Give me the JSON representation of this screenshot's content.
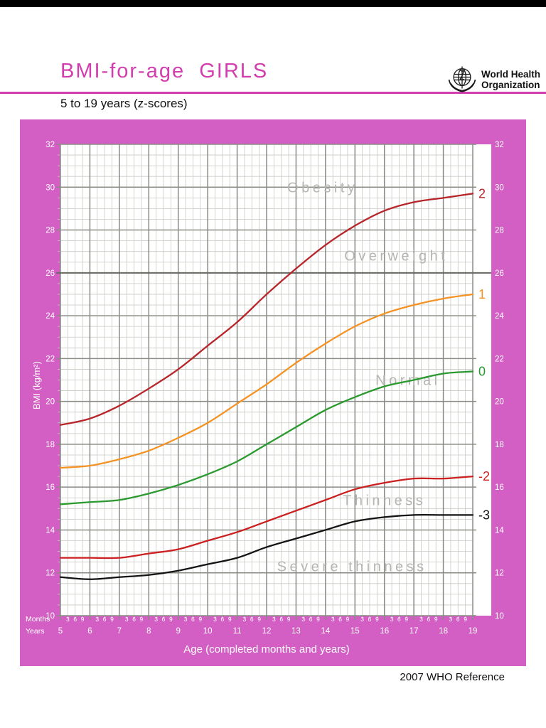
{
  "header": {
    "title": "BMI-for-age  GIRLS",
    "subtitle": "5 to 19 years (z-scores)",
    "logo_line1": "World Health",
    "logo_line2": "Organization"
  },
  "footer": {
    "reference": "2007 WHO Reference"
  },
  "colors": {
    "accent_magenta": "#d23eae",
    "frame_pink": "#d35ec4",
    "grid_minor": "#c9c9c3",
    "grid_major": "#8b8b85",
    "grid_emphasis": "#686862",
    "region_label_gray": "#b5b5b1",
    "axis_text_white": "#ffffff"
  },
  "chart_data": {
    "type": "line",
    "title": "BMI-for-age GIRLS, 5 to 19 years (z-scores)",
    "xlabel": "Age (completed months and years)",
    "ylabel": "BMI (kg/m²)",
    "xlim": [
      5,
      19
    ],
    "ylim": [
      10,
      32
    ],
    "grid": true,
    "legend_position": "right-of-curve-ends",
    "x_years": [
      5,
      6,
      7,
      8,
      9,
      10,
      11,
      12,
      13,
      14,
      15,
      16,
      17,
      18,
      19
    ],
    "y_major_ticks": [
      10,
      12,
      14,
      16,
      18,
      20,
      22,
      24,
      26,
      28,
      30,
      32
    ],
    "y_minor_step": 0.5,
    "x_minor_step_months": 3,
    "month_tick_labels": [
      "3",
      "6",
      "9"
    ],
    "axis_side_labels": {
      "months": "Months",
      "years": "Years"
    },
    "emphasis_gridline_bmi": 26,
    "series": [
      {
        "name": "z+2",
        "label": "2",
        "color": "#b8252a",
        "values": [
          18.9,
          19.2,
          19.8,
          20.6,
          21.5,
          22.6,
          23.7,
          25.0,
          26.2,
          27.3,
          28.2,
          28.9,
          29.3,
          29.5,
          29.7
        ]
      },
      {
        "name": "z+1",
        "label": "1",
        "color": "#f49223",
        "values": [
          16.9,
          17.0,
          17.3,
          17.7,
          18.3,
          19.0,
          19.9,
          20.8,
          21.8,
          22.7,
          23.5,
          24.1,
          24.5,
          24.8,
          25.0
        ]
      },
      {
        "name": "z0",
        "label": "0",
        "color": "#2a9a2f",
        "values": [
          15.2,
          15.3,
          15.4,
          15.7,
          16.1,
          16.6,
          17.2,
          18.0,
          18.8,
          19.6,
          20.2,
          20.7,
          21.0,
          21.3,
          21.4
        ]
      },
      {
        "name": "z-2",
        "label": "-2",
        "color": "#cc1f1f",
        "values": [
          12.7,
          12.7,
          12.7,
          12.9,
          13.1,
          13.5,
          13.9,
          14.4,
          14.9,
          15.4,
          15.9,
          16.2,
          16.4,
          16.4,
          16.5
        ]
      },
      {
        "name": "z-3",
        "label": "-3",
        "color": "#141414",
        "values": [
          11.8,
          11.7,
          11.8,
          11.9,
          12.1,
          12.4,
          12.7,
          13.2,
          13.6,
          14.0,
          14.4,
          14.6,
          14.7,
          14.7,
          14.7
        ]
      }
    ],
    "region_labels": [
      {
        "text": "Obesity",
        "age": 13.9,
        "bmi": 30.0
      },
      {
        "text": "Overweight",
        "age": 16.4,
        "bmi": 26.8
      },
      {
        "text": "Normal",
        "age": 16.8,
        "bmi": 21.0
      },
      {
        "text": "Thinness",
        "age": 16.0,
        "bmi": 15.4
      },
      {
        "text": "Severe thinness",
        "age": 14.9,
        "bmi": 12.3
      }
    ]
  }
}
